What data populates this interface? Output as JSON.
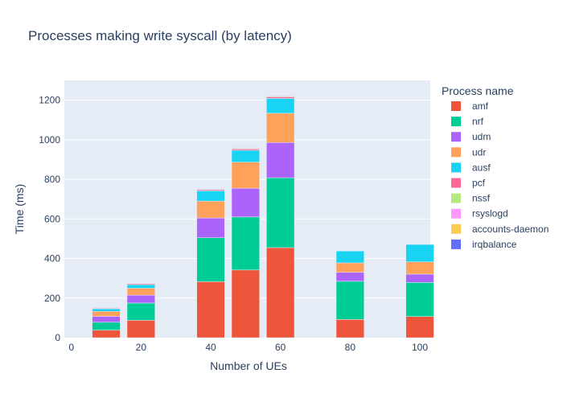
{
  "chart_data": {
    "type": "bar",
    "barmode": "stack",
    "title": "Processes making write syscall (by latency)",
    "xlabel": "Number of UEs",
    "ylabel": "Time (ms)",
    "xlim": [
      -2,
      103
    ],
    "ylim": [
      0,
      1300
    ],
    "xticks": [
      0,
      20,
      40,
      60,
      80,
      100
    ],
    "yticks": [
      0,
      200,
      400,
      600,
      800,
      1000,
      1200
    ],
    "grid": true,
    "legend": {
      "title": "Process name",
      "placement": "right"
    },
    "x": [
      10,
      20,
      40,
      50,
      60,
      80,
      100
    ],
    "series": [
      {
        "name": "amf",
        "color": "#EF553B",
        "values": [
          38,
          88,
          283,
          342,
          455,
          92,
          107
        ]
      },
      {
        "name": "nrf",
        "color": "#00CC96",
        "values": [
          40,
          87,
          222,
          268,
          353,
          193,
          172
        ]
      },
      {
        "name": "udm",
        "color": "#AB63FA",
        "values": [
          30,
          40,
          100,
          145,
          178,
          45,
          42
        ]
      },
      {
        "name": "udr",
        "color": "#FFA15A",
        "values": [
          25,
          35,
          85,
          132,
          148,
          48,
          62
        ]
      },
      {
        "name": "ausf",
        "color": "#19D3F3",
        "values": [
          13,
          18,
          52,
          60,
          75,
          60,
          88
        ]
      },
      {
        "name": "pcf",
        "color": "#FF6692",
        "values": [
          3,
          5,
          6,
          7,
          8,
          0,
          0
        ]
      },
      {
        "name": "nssf",
        "color": "#B6E880",
        "values": [
          1,
          2,
          2,
          3,
          3,
          0,
          0
        ]
      },
      {
        "name": "rsyslogd",
        "color": "#FF97FF",
        "values": [
          1,
          1,
          2,
          2,
          3,
          0,
          0
        ]
      },
      {
        "name": "accounts-daemon",
        "color": "#FECB52",
        "values": [
          1,
          1,
          1,
          1,
          2,
          0,
          0
        ]
      },
      {
        "name": "irqbalance",
        "color": "#636EFA",
        "values": [
          1,
          1,
          1,
          1,
          1,
          0,
          0
        ]
      }
    ],
    "colors": {
      "plot_background": "#E5ECF6",
      "gridline": "#ffffff",
      "text": "#2a3f5f"
    }
  }
}
